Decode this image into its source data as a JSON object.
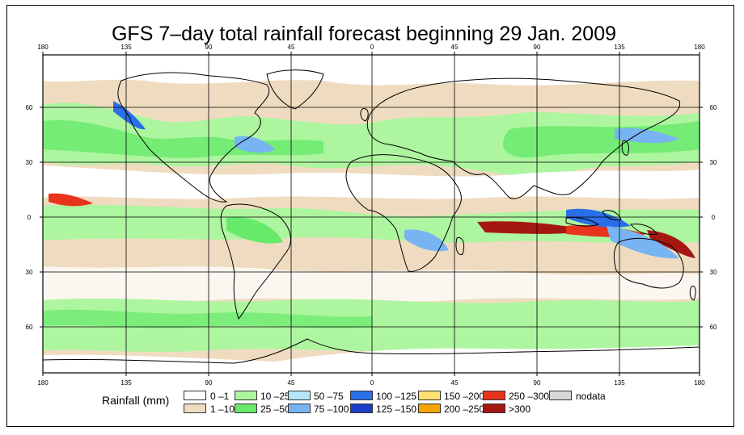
{
  "title": "GFS 7–day total rainfall forecast beginning 29 Jan. 2009",
  "axes": {
    "lon_ticks": [
      "180",
      "135",
      "90",
      "45",
      "0",
      "45",
      "90",
      "135",
      "180"
    ],
    "lat_ticks_left": [
      "60",
      "30",
      "0",
      "30",
      "60"
    ],
    "lat_ticks_right": [
      "60",
      "30",
      "0",
      "30",
      "60"
    ]
  },
  "legend": {
    "title": "Rainfall (mm)",
    "items": [
      {
        "label": "0 –1",
        "color": "#ffffff"
      },
      {
        "label": "1 –10",
        "color": "#efdcc0"
      },
      {
        "label": "10 –25",
        "color": "#aef5a0"
      },
      {
        "label": "25 –50",
        "color": "#67ea6a"
      },
      {
        "label": "50 –75",
        "color": "#b4e6f7"
      },
      {
        "label": "75 –100",
        "color": "#78b4f2"
      },
      {
        "label": "100 –125",
        "color": "#2a6ee8"
      },
      {
        "label": "125 –150",
        "color": "#1b3fc6"
      },
      {
        "label": "150 –200",
        "color": "#ffe070"
      },
      {
        "label": "200 –250",
        "color": "#f5a300"
      },
      {
        "label": "250 –300",
        "color": "#e8341c"
      },
      {
        "label": ">300",
        "color": "#a51812"
      },
      {
        "label": "nodata",
        "color": "#d8d8d8"
      }
    ]
  }
}
